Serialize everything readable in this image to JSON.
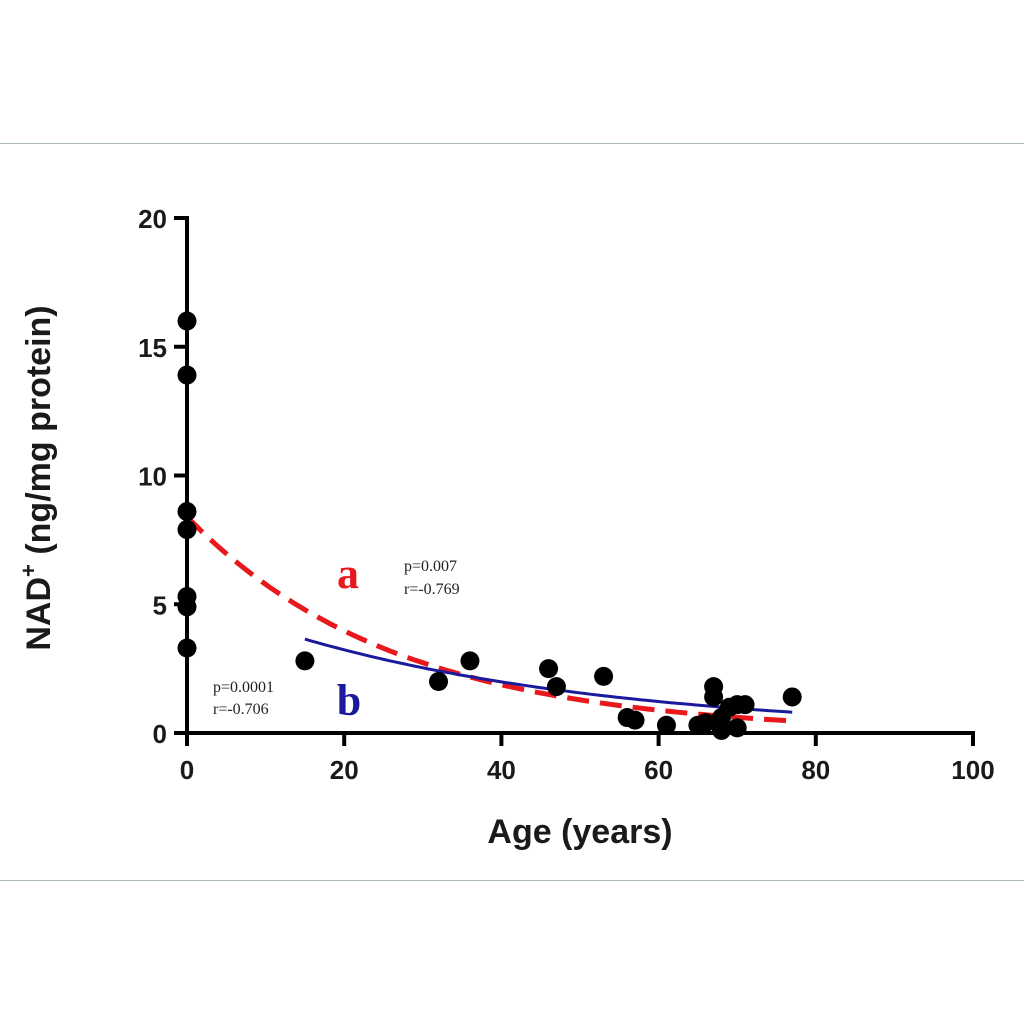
{
  "chart_data": {
    "type": "scatter",
    "xlabel": "Age (years)",
    "ylabel_main": "NAD",
    "ylabel_sup": "+",
    "ylabel_rest": " (ng/mg protein)",
    "xlim": [
      0,
      100
    ],
    "ylim": [
      0,
      20
    ],
    "xticks": [
      0,
      20,
      40,
      60,
      80,
      100
    ],
    "yticks": [
      0,
      5,
      10,
      15,
      20
    ],
    "grid": false,
    "points": [
      {
        "x": 0,
        "y": 16.0
      },
      {
        "x": 0,
        "y": 13.9
      },
      {
        "x": 0,
        "y": 8.6
      },
      {
        "x": 0,
        "y": 7.9
      },
      {
        "x": 0,
        "y": 5.3
      },
      {
        "x": 0,
        "y": 4.9
      },
      {
        "x": 0,
        "y": 3.3
      },
      {
        "x": 15,
        "y": 2.8
      },
      {
        "x": 32,
        "y": 2.0
      },
      {
        "x": 36,
        "y": 2.8
      },
      {
        "x": 46,
        "y": 2.5
      },
      {
        "x": 47,
        "y": 1.8
      },
      {
        "x": 53,
        "y": 2.2
      },
      {
        "x": 56,
        "y": 0.6
      },
      {
        "x": 57,
        "y": 0.5
      },
      {
        "x": 61,
        "y": 0.3
      },
      {
        "x": 65,
        "y": 0.3
      },
      {
        "x": 66,
        "y": 0.4
      },
      {
        "x": 67,
        "y": 1.8
      },
      {
        "x": 67,
        "y": 1.4
      },
      {
        "x": 68,
        "y": 0.1
      },
      {
        "x": 68,
        "y": 0.6
      },
      {
        "x": 69,
        "y": 1.0
      },
      {
        "x": 70,
        "y": 0.2
      },
      {
        "x": 70,
        "y": 1.1
      },
      {
        "x": 71,
        "y": 1.1
      },
      {
        "x": 77,
        "y": 1.4
      }
    ],
    "curves": [
      {
        "id": "a",
        "color": "#e8181c",
        "style": "dashed",
        "fit": {
          "x_start": 0,
          "x_end": 77,
          "y0": 8.4,
          "k": 0.0375
        }
      },
      {
        "id": "b",
        "color": "#1a1a9c",
        "style": "solid",
        "fit": {
          "x_start": 15,
          "x_end": 77,
          "y0": 5.25,
          "k": 0.0243
        }
      }
    ],
    "annotations": {
      "curve_a": {
        "letter": "a",
        "p": "p=0.007",
        "r": "r=-0.769"
      },
      "curve_b": {
        "letter": "b",
        "p": "p=0.0001",
        "r": "r=-0.706"
      }
    },
    "colors": {
      "axis": "#000000",
      "points": "#000000",
      "curve_a": "#e8181c",
      "curve_b": "#1a1a9c"
    }
  }
}
